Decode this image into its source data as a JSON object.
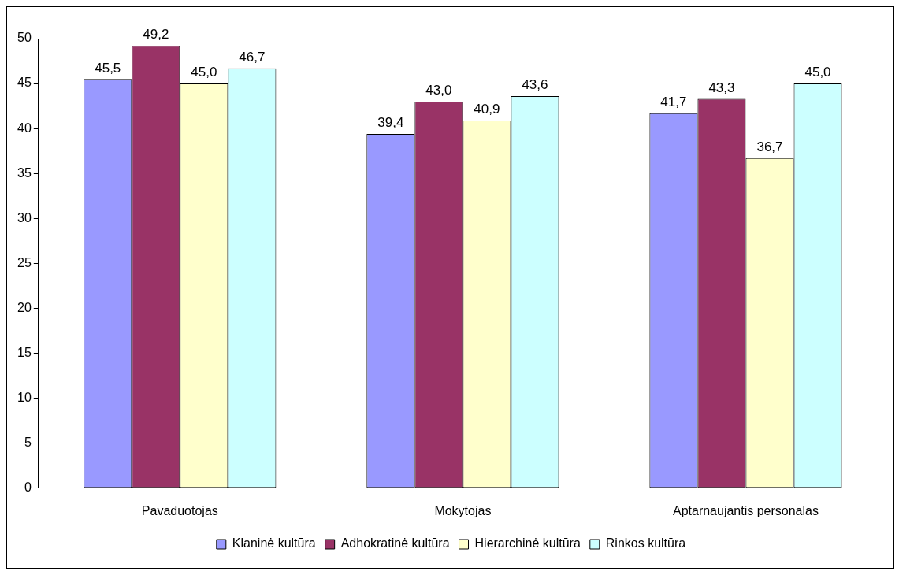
{
  "chart_data": {
    "type": "bar",
    "categories": [
      "Pavaduotojas",
      "Mokytojas",
      "Aptarnaujantis personalas"
    ],
    "series": [
      {
        "name": "Klaninė kultūra",
        "color": "#9999ff",
        "values": [
          45.5,
          39.4,
          41.7
        ],
        "value_labels": [
          "45,5",
          "39,4",
          "41,7"
        ]
      },
      {
        "name": "Adhokratinė kultūra",
        "color": "#993366",
        "values": [
          49.2,
          43.0,
          43.3
        ],
        "value_labels": [
          "49,2",
          "43,0",
          "43,3"
        ]
      },
      {
        "name": "Hierarchinė kultūra",
        "color": "#ffffcc",
        "values": [
          45.0,
          40.9,
          36.7
        ],
        "value_labels": [
          "45,0",
          "40,9",
          "36,7"
        ]
      },
      {
        "name": "Rinkos kultūra",
        "color": "#ccffff",
        "values": [
          46.7,
          43.6,
          45.0
        ],
        "value_labels": [
          "46,7",
          "43,6",
          "45,0"
        ]
      }
    ],
    "ylim": [
      0,
      50
    ],
    "yticks": [
      0,
      5,
      10,
      15,
      20,
      25,
      30,
      35,
      40,
      45,
      50
    ],
    "grid": false,
    "legend": "bottom"
  }
}
